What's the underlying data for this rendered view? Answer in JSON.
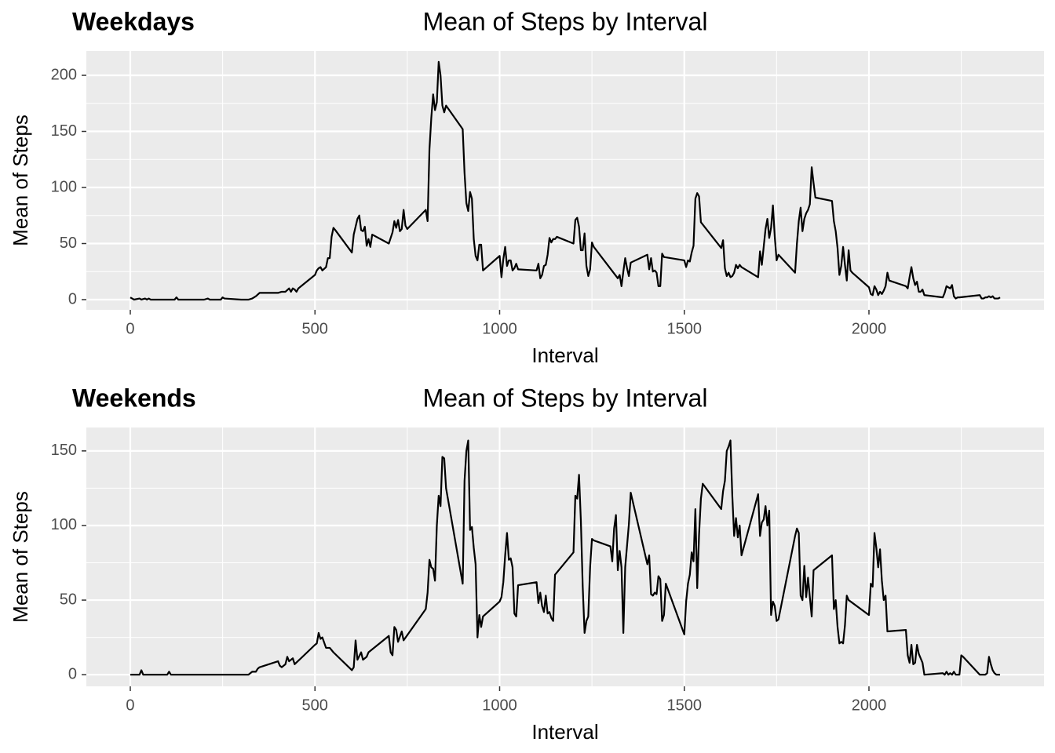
{
  "chart_data": [
    {
      "type": "line",
      "tag": "Weekdays",
      "title": "Mean of Steps by Interval",
      "x_label": "Interval",
      "y_label": "Mean of Steps",
      "color": "#000000",
      "grid": true,
      "xlim": [
        -119,
        2474
      ],
      "ylim": [
        -9.1,
        221.7
      ],
      "xticks": [
        0,
        500,
        1000,
        1500,
        2000
      ],
      "x_minor_ticks": [
        250,
        750,
        1250,
        1750,
        2250
      ],
      "yticks": [
        0,
        50,
        100,
        150,
        200
      ],
      "y_minor_ticks": [
        25,
        75,
        125,
        175
      ],
      "x": [
        0,
        10,
        25,
        30,
        40,
        45,
        50,
        55,
        100,
        120,
        125,
        130,
        200,
        210,
        215,
        245,
        250,
        255,
        300,
        320,
        330,
        340,
        350,
        400,
        410,
        420,
        430,
        435,
        440,
        445,
        450,
        455,
        500,
        505,
        510,
        515,
        520,
        530,
        535,
        540,
        545,
        550,
        555,
        600,
        605,
        615,
        620,
        625,
        630,
        635,
        640,
        645,
        650,
        655,
        700,
        710,
        715,
        720,
        725,
        730,
        735,
        740,
        745,
        750,
        800,
        805,
        810,
        815,
        820,
        825,
        830,
        835,
        840,
        845,
        850,
        855,
        900,
        905,
        910,
        915,
        920,
        925,
        930,
        935,
        940,
        945,
        950,
        955,
        1000,
        1005,
        1010,
        1015,
        1020,
        1025,
        1030,
        1035,
        1040,
        1045,
        1050,
        1100,
        1105,
        1110,
        1115,
        1120,
        1125,
        1130,
        1135,
        1140,
        1145,
        1150,
        1155,
        1200,
        1205,
        1210,
        1215,
        1220,
        1225,
        1230,
        1235,
        1240,
        1245,
        1250,
        1255,
        1320,
        1325,
        1330,
        1335,
        1340,
        1345,
        1350,
        1355,
        1400,
        1405,
        1410,
        1415,
        1420,
        1425,
        1430,
        1435,
        1440,
        1445,
        1500,
        1505,
        1510,
        1515,
        1520,
        1525,
        1530,
        1535,
        1540,
        1545,
        1600,
        1605,
        1610,
        1615,
        1620,
        1625,
        1630,
        1635,
        1640,
        1645,
        1650,
        1655,
        1700,
        1705,
        1710,
        1715,
        1720,
        1725,
        1730,
        1735,
        1740,
        1745,
        1750,
        1755,
        1800,
        1805,
        1810,
        1815,
        1820,
        1825,
        1830,
        1835,
        1840,
        1845,
        1850,
        1855,
        1900,
        1905,
        1910,
        1915,
        1920,
        1925,
        1930,
        1935,
        1940,
        1945,
        1950,
        1955,
        2000,
        2005,
        2010,
        2015,
        2020,
        2025,
        2030,
        2035,
        2040,
        2045,
        2050,
        2055,
        2100,
        2105,
        2110,
        2115,
        2120,
        2125,
        2130,
        2135,
        2140,
        2145,
        2150,
        2200,
        2205,
        2210,
        2215,
        2220,
        2225,
        2230,
        2235,
        2240,
        2245,
        2300,
        2305,
        2310,
        2315,
        2320,
        2325,
        2330,
        2335,
        2340,
        2345,
        2350,
        2355
      ],
      "values": [
        2,
        0,
        1,
        0,
        1,
        0,
        1,
        0,
        0,
        0,
        2,
        0,
        0,
        1,
        0,
        0,
        2,
        1,
        0,
        0,
        1,
        3,
        6,
        6,
        7,
        7,
        10,
        7,
        10,
        9,
        7,
        10,
        22,
        26,
        28,
        29,
        26,
        29,
        37,
        37,
        56,
        64,
        62,
        42,
        58,
        72,
        75,
        62,
        61,
        65,
        48,
        54,
        47,
        58,
        50,
        60,
        70,
        64,
        71,
        61,
        63,
        80,
        66,
        63,
        80,
        70,
        134,
        162,
        183,
        169,
        176,
        212,
        200,
        173,
        167,
        173,
        152,
        113,
        86,
        79,
        96,
        90,
        54,
        39,
        35,
        49,
        49,
        26,
        39,
        20,
        36,
        47,
        30,
        35,
        35,
        26,
        28,
        32,
        27,
        26,
        32,
        19,
        22,
        30,
        31,
        40,
        55,
        51,
        54,
        54,
        56,
        50,
        71,
        73,
        65,
        44,
        44,
        59,
        30,
        21,
        27,
        51,
        47,
        19,
        22,
        12,
        25,
        37,
        28,
        21,
        33,
        40,
        27,
        37,
        25,
        26,
        24,
        12,
        12,
        41,
        38,
        35,
        29,
        35,
        34,
        42,
        48,
        90,
        95,
        92,
        69,
        46,
        53,
        28,
        21,
        24,
        20,
        21,
        24,
        31,
        28,
        31,
        29,
        20,
        43,
        31,
        47,
        63,
        72,
        55,
        64,
        84,
        56,
        35,
        40,
        24,
        50,
        70,
        82,
        61,
        72,
        77,
        80,
        85,
        118,
        104,
        91,
        88,
        70,
        61,
        46,
        22,
        30,
        47,
        31,
        17,
        44,
        26,
        24,
        11,
        5,
        4,
        12,
        9,
        4,
        7,
        5,
        8,
        12,
        24,
        17,
        12,
        10,
        20,
        29,
        19,
        13,
        16,
        7,
        7,
        9,
        4,
        2,
        6,
        12,
        11,
        10,
        13,
        3,
        1,
        2,
        2,
        4,
        1,
        1,
        2,
        2,
        3,
        2,
        3,
        1,
        1,
        1,
        2
      ]
    },
    {
      "type": "line",
      "tag": "Weekends",
      "title": "Mean of Steps by Interval",
      "x_label": "Interval",
      "y_label": "Mean of Steps",
      "color": "#000000",
      "grid": true,
      "xlim": [
        -119,
        2474
      ],
      "ylim": [
        -7.8,
        165.7
      ],
      "xticks": [
        0,
        500,
        1000,
        1500,
        2000
      ],
      "x_minor_ticks": [
        250,
        750,
        1250,
        1750,
        2250
      ],
      "yticks": [
        0,
        50,
        100,
        150
      ],
      "y_minor_ticks": [
        25,
        75,
        125
      ],
      "x": [
        0,
        25,
        30,
        35,
        100,
        105,
        110,
        150,
        200,
        255,
        300,
        320,
        330,
        340,
        345,
        350,
        400,
        405,
        410,
        420,
        425,
        430,
        440,
        445,
        500,
        505,
        510,
        515,
        520,
        530,
        540,
        550,
        600,
        605,
        610,
        615,
        625,
        630,
        640,
        645,
        700,
        705,
        710,
        715,
        720,
        725,
        735,
        740,
        800,
        805,
        810,
        815,
        820,
        825,
        830,
        835,
        840,
        845,
        850,
        855,
        900,
        905,
        910,
        915,
        920,
        925,
        930,
        935,
        940,
        945,
        950,
        955,
        1000,
        1005,
        1010,
        1015,
        1020,
        1025,
        1030,
        1035,
        1040,
        1045,
        1050,
        1100,
        1105,
        1110,
        1115,
        1120,
        1125,
        1130,
        1135,
        1140,
        1145,
        1150,
        1200,
        1205,
        1210,
        1215,
        1220,
        1225,
        1230,
        1235,
        1240,
        1245,
        1250,
        1255,
        1300,
        1305,
        1310,
        1315,
        1320,
        1325,
        1330,
        1335,
        1340,
        1350,
        1355,
        1400,
        1405,
        1410,
        1415,
        1420,
        1425,
        1430,
        1435,
        1440,
        1445,
        1450,
        1500,
        1505,
        1510,
        1515,
        1520,
        1525,
        1530,
        1535,
        1540,
        1545,
        1550,
        1600,
        1605,
        1610,
        1615,
        1620,
        1625,
        1630,
        1635,
        1640,
        1645,
        1650,
        1655,
        1700,
        1705,
        1710,
        1715,
        1720,
        1725,
        1730,
        1735,
        1740,
        1745,
        1750,
        1755,
        1800,
        1805,
        1810,
        1815,
        1820,
        1825,
        1830,
        1835,
        1840,
        1845,
        1850,
        1900,
        1905,
        1910,
        1915,
        1920,
        1925,
        1930,
        1935,
        1940,
        1945,
        2000,
        2005,
        2010,
        2015,
        2020,
        2025,
        2030,
        2035,
        2040,
        2045,
        2050,
        2100,
        2105,
        2110,
        2115,
        2120,
        2125,
        2130,
        2135,
        2140,
        2145,
        2150,
        2200,
        2205,
        2210,
        2215,
        2220,
        2225,
        2230,
        2235,
        2240,
        2245,
        2250,
        2255,
        2300,
        2315,
        2320,
        2325,
        2330,
        2335,
        2340,
        2345,
        2355
      ],
      "values": [
        0,
        0,
        3,
        0,
        0,
        2,
        0,
        0,
        0,
        0,
        0,
        0,
        2,
        2,
        4,
        5,
        9,
        6,
        5,
        7,
        12,
        9,
        11,
        7,
        20,
        21,
        28,
        24,
        25,
        18,
        18,
        15,
        3,
        5,
        23,
        10,
        15,
        10,
        12,
        15,
        26,
        15,
        13,
        32,
        30,
        22,
        29,
        23,
        44,
        55,
        77,
        72,
        71,
        63,
        100,
        120,
        113,
        146,
        145,
        125,
        61,
        130,
        150,
        157,
        97,
        99,
        85,
        74,
        25,
        40,
        32,
        39,
        49,
        52,
        62,
        80,
        95,
        77,
        78,
        72,
        41,
        39,
        60,
        62,
        48,
        55,
        46,
        42,
        53,
        41,
        42,
        38,
        36,
        67,
        82,
        120,
        118,
        134,
        103,
        59,
        28,
        36,
        39,
        72,
        91,
        90,
        86,
        76,
        98,
        107,
        70,
        83,
        72,
        28,
        72,
        101,
        122,
        74,
        80,
        54,
        53,
        55,
        54,
        66,
        64,
        36,
        40,
        61,
        27,
        49,
        61,
        67,
        82,
        76,
        111,
        58,
        94,
        118,
        128,
        111,
        123,
        130,
        150,
        153,
        157,
        120,
        93,
        105,
        92,
        100,
        80,
        121,
        93,
        102,
        104,
        113,
        100,
        110,
        40,
        49,
        46,
        36,
        37,
        93,
        98,
        95,
        53,
        50,
        73,
        52,
        65,
        52,
        39,
        70,
        80,
        44,
        50,
        32,
        21,
        22,
        21,
        33,
        53,
        50,
        40,
        61,
        59,
        95,
        85,
        72,
        84,
        63,
        50,
        53,
        29,
        30,
        13,
        8,
        20,
        7,
        8,
        20,
        14,
        11,
        8,
        0,
        1,
        0,
        2,
        0,
        1,
        0,
        2,
        0,
        0,
        0,
        13,
        12,
        0,
        0,
        1,
        12,
        7,
        3,
        1,
        0,
        0
      ]
    }
  ]
}
